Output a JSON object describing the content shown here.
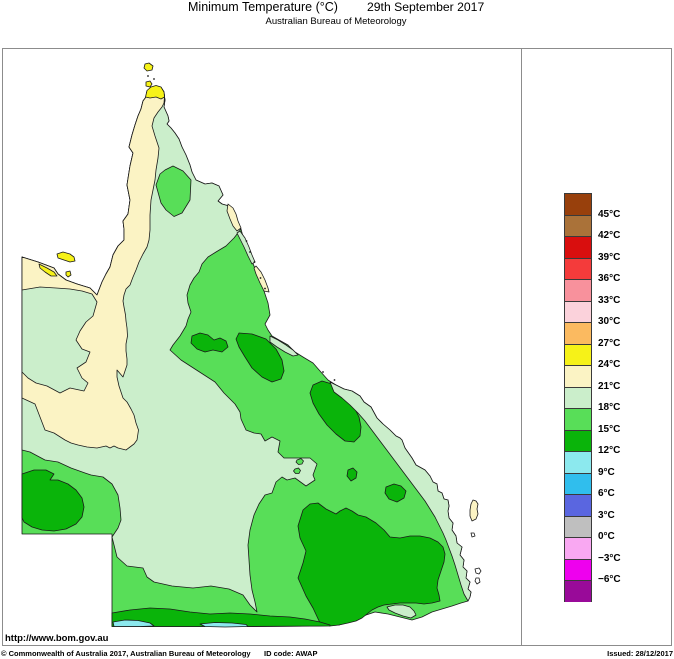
{
  "title": {
    "main": "Minimum Temperature (°C)",
    "date": "29th September 2017",
    "subtitle": "Australian Bureau of Meteorology"
  },
  "footer": {
    "url": "http://www.bom.gov.au",
    "copyright": "© Commonwealth of Australia 2017, Australian Bureau of Meteorology",
    "id_code": "ID code: AWAP",
    "issued": "Issued: 28/12/2017"
  },
  "legend": {
    "labels": [
      "45°C",
      "42°C",
      "39°C",
      "36°C",
      "33°C",
      "30°C",
      "27°C",
      "24°C",
      "21°C",
      "18°C",
      "15°C",
      "12°C",
      "9°C",
      "6°C",
      "3°C",
      "0°C",
      "−3°C",
      "−6°C"
    ],
    "cell_colors": [
      "#98400c",
      "#aa7239",
      "#d90e0e",
      "#f43b3b",
      "#f8919c",
      "#fbd2db",
      "#fbba60",
      "#f6f218",
      "#fbf3c4",
      "#cbeecb",
      "#58de58",
      "#0ab40a",
      "#8ce9ee",
      "#30beed",
      "#5a66e0",
      "#bfbfbf",
      "#f9a8f2",
      "#ee00ee",
      "#990a99"
    ]
  },
  "map_colors": {
    "cream": "#fbf3c4",
    "mint": "#cbeecb",
    "lgreen": "#58de58",
    "dgreen": "#0ab40a",
    "yellow": "#f6f218",
    "cyan": "#8ce9ee",
    "white": "#ffffff"
  }
}
